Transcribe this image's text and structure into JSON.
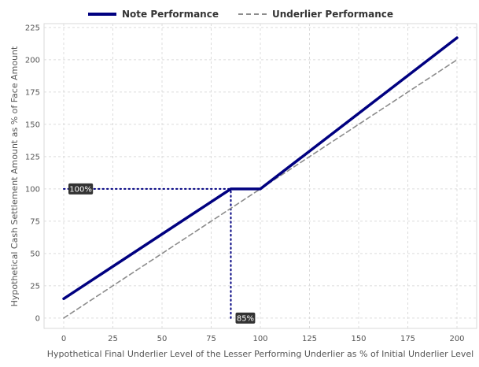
{
  "chart_data": {
    "type": "line",
    "xlabel": "Hypothetical Final Underlier Level of the Lesser Performing Underlier as % of Initial Underlier Level",
    "ylabel": "Hypothetical Cash Settlement Amount as % of Face Amount",
    "xlim": [
      -10,
      210
    ],
    "ylim": [
      -8,
      228
    ],
    "x_ticks": [
      0,
      25,
      50,
      75,
      100,
      125,
      150,
      175,
      200
    ],
    "y_ticks": [
      0,
      25,
      50,
      75,
      100,
      125,
      150,
      175,
      200,
      225
    ],
    "grid": true,
    "legend_placement": "top-center",
    "series": [
      {
        "name": "Note Performance",
        "style": "solid",
        "color": "#000080",
        "x": [
          0,
          85,
          100,
          200
        ],
        "y": [
          15,
          100,
          100,
          217
        ]
      },
      {
        "name": "Underlier Performance",
        "style": "dashed",
        "color": "#8c8c8c",
        "x": [
          0,
          200
        ],
        "y": [
          0,
          200
        ]
      }
    ],
    "reference_lines": [
      {
        "orientation": "horizontal",
        "y": 100,
        "x_from": 0,
        "x_to": 85,
        "style": "dotted",
        "color": "#000080"
      },
      {
        "orientation": "vertical",
        "x": 85,
        "y_from": 0,
        "y_to": 100,
        "style": "dotted",
        "color": "#000080"
      }
    ],
    "annotations": [
      {
        "text": "100%",
        "x": 0,
        "y": 100,
        "anchor": "left"
      },
      {
        "text": "85%",
        "x": 85,
        "y": 0,
        "anchor": "left"
      }
    ]
  }
}
